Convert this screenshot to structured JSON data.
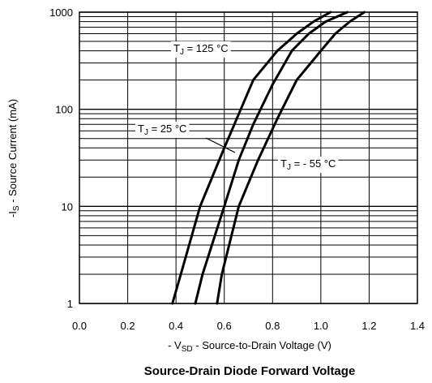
{
  "chart_data": {
    "type": "line",
    "title": "Source-Drain Diode Forward Voltage",
    "xlabel": {
      "prefix": "- V",
      "sub": "SD",
      "suffix": " - Source-to-Drain Voltage (V)"
    },
    "ylabel": {
      "prefix": "-I",
      "sub": "S",
      "suffix": " - Source Current (mA)"
    },
    "xlim": [
      0.0,
      1.4
    ],
    "ylim": [
      1,
      1000
    ],
    "yscale": "log",
    "grid": true,
    "x_ticks": [
      "0.0",
      "0.2",
      "0.4",
      "0.6",
      "0.8",
      "1.0",
      "1.2",
      "1.4"
    ],
    "x_tick_values": [
      0.0,
      0.2,
      0.4,
      0.6,
      0.8,
      1.0,
      1.2,
      1.4
    ],
    "y_ticks": [
      "1",
      "10",
      "100",
      "1000"
    ],
    "y_tick_values": [
      1,
      10,
      100,
      1000
    ],
    "series": [
      {
        "name": "TJ = 125 °C",
        "label": {
          "prefix": "T",
          "sub": "J",
          "suffix": " = 125 °C"
        },
        "x": [
          0.385,
          0.42,
          0.5,
          0.6,
          0.72,
          0.82,
          0.9,
          0.97,
          1.04
        ],
        "y": [
          1,
          2,
          10,
          40,
          200,
          400,
          600,
          800,
          1000
        ]
      },
      {
        "name": "TJ = 25 °C",
        "label": {
          "prefix": "T",
          "sub": "J",
          "suffix": " = 25 °C"
        },
        "x": [
          0.48,
          0.51,
          0.6,
          0.66,
          0.72,
          0.8,
          0.88,
          0.95,
          1.02,
          1.11
        ],
        "y": [
          1,
          2,
          10,
          30,
          70,
          180,
          400,
          600,
          800,
          1000
        ]
      },
      {
        "name": "TJ = - 55 °C",
        "label": {
          "prefix": "T",
          "sub": "J",
          "suffix": " = - 55 °C"
        },
        "x": [
          0.57,
          0.59,
          0.66,
          0.74,
          0.82,
          0.9,
          1.0,
          1.06,
          1.12,
          1.18
        ],
        "y": [
          1,
          2,
          10,
          30,
          80,
          200,
          400,
          600,
          800,
          1000
        ]
      }
    ]
  }
}
